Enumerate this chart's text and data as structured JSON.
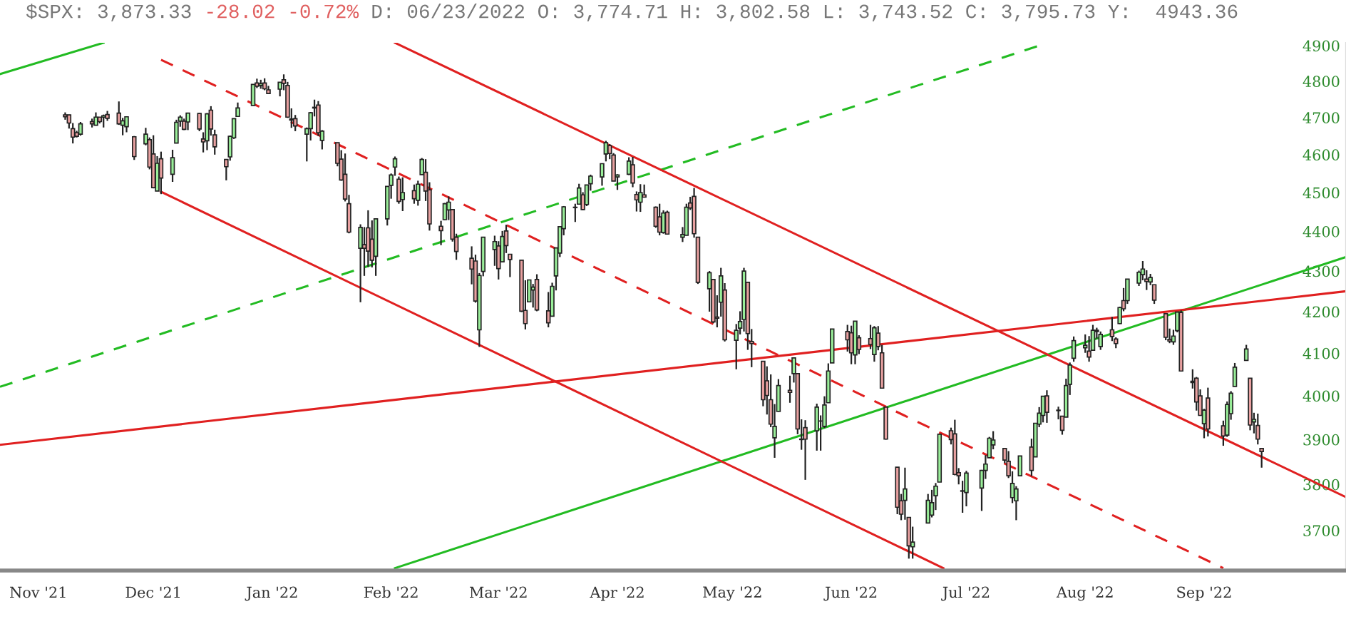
{
  "chart_data": {
    "type": "candlestick",
    "title": "$SPX: 3,873.33",
    "subtitle": "-28.02 -0.72%",
    "annotations": [
      "D: 06/23/2022 O: 3,774.71 H: 3,802.58 L: 3,743.52 C: 3,795.73 Y:  4943.36"
    ],
    "log": true,
    "grid": false,
    "legend": false,
    "xlim": [
      "2021-10-22",
      "2022-10-08"
    ],
    "xticks": [
      {
        "value": "2021-11-01",
        "label": "Nov '21"
      },
      {
        "value": "2021-12-01",
        "label": "Dec '21"
      },
      {
        "value": "2022-01-01",
        "label": "Jan '22"
      },
      {
        "value": "2022-02-01",
        "label": "Feb '22"
      },
      {
        "value": "2022-03-01",
        "label": "Mar '22"
      },
      {
        "value": "2022-04-01",
        "label": "Apr '22"
      },
      {
        "value": "2022-05-01",
        "label": "May '22"
      },
      {
        "value": "2022-06-01",
        "label": "Jun '22"
      },
      {
        "value": "2022-07-01",
        "label": "Jul '22"
      },
      {
        "value": "2022-08-01",
        "label": "Aug '22"
      },
      {
        "value": "2022-09-01",
        "label": "Sep '22"
      }
    ],
    "x": [
      "2021-11-08",
      "2021-11-09",
      "2021-11-10",
      "2021-11-11",
      "2021-11-12",
      "2021-11-15",
      "2021-11-16",
      "2021-11-17",
      "2021-11-18",
      "2021-11-19",
      "2021-11-22",
      "2021-11-23",
      "2021-11-24",
      "2021-11-26",
      "2021-11-29",
      "2021-11-30",
      "2021-12-01",
      "2021-12-02",
      "2021-12-03",
      "2021-12-06",
      "2021-12-07",
      "2021-12-08",
      "2021-12-09",
      "2021-12-10",
      "2021-12-13",
      "2021-12-14",
      "2021-12-15",
      "2021-12-16",
      "2021-12-17",
      "2021-12-20",
      "2021-12-21",
      "2021-12-22",
      "2021-12-23",
      "2021-12-27",
      "2021-12-28",
      "2021-12-29",
      "2021-12-30",
      "2021-12-31",
      "2022-01-03",
      "2022-01-04",
      "2022-01-05",
      "2022-01-06",
      "2022-01-07",
      "2022-01-10",
      "2022-01-11",
      "2022-01-12",
      "2022-01-13",
      "2022-01-14",
      "2022-01-18",
      "2022-01-19",
      "2022-01-20",
      "2022-01-21",
      "2022-01-24",
      "2022-01-25",
      "2022-01-26",
      "2022-01-27",
      "2022-01-28",
      "2022-01-31",
      "2022-02-01",
      "2022-02-02",
      "2022-02-03",
      "2022-02-04",
      "2022-02-07",
      "2022-02-08",
      "2022-02-09",
      "2022-02-10",
      "2022-02-11",
      "2022-02-14",
      "2022-02-15",
      "2022-02-16",
      "2022-02-17",
      "2022-02-18",
      "2022-02-22",
      "2022-02-23",
      "2022-02-24",
      "2022-02-25",
      "2022-02-28",
      "2022-03-01",
      "2022-03-02",
      "2022-03-03",
      "2022-03-04",
      "2022-03-07",
      "2022-03-08",
      "2022-03-09",
      "2022-03-10",
      "2022-03-11",
      "2022-03-14",
      "2022-03-15",
      "2022-03-16",
      "2022-03-17",
      "2022-03-18",
      "2022-03-21",
      "2022-03-22",
      "2022-03-23",
      "2022-03-24",
      "2022-03-25",
      "2022-03-28",
      "2022-03-29",
      "2022-03-30",
      "2022-03-31",
      "2022-04-01",
      "2022-04-04",
      "2022-04-05",
      "2022-04-06",
      "2022-04-07",
      "2022-04-08",
      "2022-04-11",
      "2022-04-12",
      "2022-04-13",
      "2022-04-14",
      "2022-04-18",
      "2022-04-19",
      "2022-04-20",
      "2022-04-21",
      "2022-04-22",
      "2022-04-25",
      "2022-04-26",
      "2022-04-27",
      "2022-04-28",
      "2022-04-29",
      "2022-05-02",
      "2022-05-03",
      "2022-05-04",
      "2022-05-05",
      "2022-05-06",
      "2022-05-09",
      "2022-05-10",
      "2022-05-11",
      "2022-05-12",
      "2022-05-13",
      "2022-05-16",
      "2022-05-17",
      "2022-05-18",
      "2022-05-19",
      "2022-05-20",
      "2022-05-23",
      "2022-05-24",
      "2022-05-25",
      "2022-05-26",
      "2022-05-27",
      "2022-05-31",
      "2022-06-01",
      "2022-06-02",
      "2022-06-03",
      "2022-06-06",
      "2022-06-07",
      "2022-06-08",
      "2022-06-09",
      "2022-06-10",
      "2022-06-13",
      "2022-06-14",
      "2022-06-15",
      "2022-06-16",
      "2022-06-17",
      "2022-06-21",
      "2022-06-22",
      "2022-06-23",
      "2022-06-24",
      "2022-06-27",
      "2022-06-28",
      "2022-06-29",
      "2022-06-30",
      "2022-07-01",
      "2022-07-05",
      "2022-07-06",
      "2022-07-07",
      "2022-07-08",
      "2022-07-11",
      "2022-07-12",
      "2022-07-13",
      "2022-07-14",
      "2022-07-15",
      "2022-07-18",
      "2022-07-19",
      "2022-07-20",
      "2022-07-21",
      "2022-07-22",
      "2022-07-25",
      "2022-07-26",
      "2022-07-27",
      "2022-07-28",
      "2022-07-29",
      "2022-08-01",
      "2022-08-02",
      "2022-08-03",
      "2022-08-04",
      "2022-08-05",
      "2022-08-08",
      "2022-08-09",
      "2022-08-10",
      "2022-08-11",
      "2022-08-12",
      "2022-08-15",
      "2022-08-16",
      "2022-08-17",
      "2022-08-18",
      "2022-08-19",
      "2022-08-22",
      "2022-08-23",
      "2022-08-24",
      "2022-08-25",
      "2022-08-26",
      "2022-08-29",
      "2022-08-30",
      "2022-08-31",
      "2022-09-01",
      "2022-09-02",
      "2022-09-06",
      "2022-09-07",
      "2022-09-08",
      "2022-09-09",
      "2022-09-12",
      "2022-09-13",
      "2022-09-14",
      "2022-09-15",
      "2022-09-16"
    ],
    "ylim": [
      3615,
      4908
    ],
    "yticks": [
      3700,
      3800,
      3900,
      4000,
      4100,
      4200,
      4300,
      4400,
      4500,
      4600,
      4700,
      4800,
      4900
    ],
    "ohlc": [
      [
        4707,
        4714,
        4694,
        4702
      ],
      [
        4707,
        4708,
        4670,
        4685
      ],
      [
        4670,
        4685,
        4630,
        4647
      ],
      [
        4659,
        4664,
        4646,
        4649
      ],
      [
        4655,
        4688,
        4651,
        4683
      ],
      [
        4689,
        4697,
        4673,
        4683
      ],
      [
        4679,
        4714,
        4679,
        4701
      ],
      [
        4701,
        4701,
        4684,
        4689
      ],
      [
        4701,
        4708,
        4673,
        4705
      ],
      [
        4708,
        4718,
        4691,
        4698
      ],
      [
        4712,
        4744,
        4680,
        4683
      ],
      [
        4679,
        4699,
        4652,
        4691
      ],
      [
        4675,
        4702,
        4660,
        4702
      ],
      [
        4648,
        4650,
        4586,
        4595
      ],
      [
        4629,
        4672,
        4625,
        4655
      ],
      [
        4640,
        4646,
        4561,
        4567
      ],
      [
        4602,
        4652,
        4511,
        4513
      ],
      [
        4504,
        4596,
        4504,
        4577
      ],
      [
        4589,
        4608,
        4496,
        4538
      ],
      [
        4548,
        4613,
        4528,
        4592
      ],
      [
        4631,
        4694,
        4631,
        4687
      ],
      [
        4690,
        4706,
        4675,
        4701
      ],
      [
        4690,
        4697,
        4666,
        4668
      ],
      [
        4688,
        4713,
        4666,
        4712
      ],
      [
        4711,
        4712,
        4663,
        4669
      ],
      [
        4642,
        4660,
        4606,
        4634
      ],
      [
        4637,
        4712,
        4612,
        4710
      ],
      [
        4720,
        4731,
        4651,
        4669
      ],
      [
        4653,
        4667,
        4600,
        4621
      ],
      [
        4587,
        4588,
        4532,
        4568
      ],
      [
        4594,
        4651,
        4584,
        4649
      ],
      [
        4645,
        4697,
        4642,
        4697
      ],
      [
        4703,
        4741,
        4703,
        4726
      ],
      [
        4733,
        4791,
        4733,
        4791
      ],
      [
        4795,
        4807,
        4781,
        4786
      ],
      [
        4788,
        4804,
        4779,
        4793
      ],
      [
        4795,
        4808,
        4775,
        4779
      ],
      [
        4776,
        4787,
        4765,
        4766
      ],
      [
        4778,
        4797,
        4758,
        4797
      ],
      [
        4804,
        4819,
        4775,
        4794
      ],
      [
        4788,
        4798,
        4699,
        4701
      ],
      [
        4693,
        4725,
        4672,
        4696
      ],
      [
        4697,
        4707,
        4663,
        4677
      ],
      [
        4655,
        4673,
        4582,
        4670
      ],
      [
        4670,
        4715,
        4638,
        4713
      ],
      [
        4728,
        4749,
        4703,
        4726
      ],
      [
        4734,
        4745,
        4650,
        4659
      ],
      [
        4638,
        4666,
        4614,
        4663
      ],
      [
        4632,
        4632,
        4569,
        4577
      ],
      [
        4588,
        4612,
        4531,
        4533
      ],
      [
        4548,
        4603,
        4477,
        4483
      ],
      [
        4471,
        4494,
        4395,
        4398
      ],
      [
        4357,
        4418,
        4223,
        4410
      ],
      [
        4366,
        4411,
        4288,
        4357
      ],
      [
        4409,
        4454,
        4310,
        4350
      ],
      [
        4380,
        4428,
        4309,
        4327
      ],
      [
        4337,
        4432,
        4288,
        4432
      ],
      [
        4432,
        4516,
        4415,
        4516
      ],
      [
        4519,
        4550,
        4484,
        4546
      ],
      [
        4567,
        4595,
        4544,
        4589
      ],
      [
        4535,
        4542,
        4471,
        4477
      ],
      [
        4482,
        4540,
        4452,
        4500
      ],
      [
        4505,
        4521,
        4471,
        4484
      ],
      [
        4480,
        4531,
        4466,
        4522
      ],
      [
        4547,
        4591,
        4547,
        4587
      ],
      [
        4553,
        4588,
        4478,
        4504
      ],
      [
        4507,
        4527,
        4402,
        4419
      ],
      [
        4413,
        4427,
        4365,
        4402
      ],
      [
        4430,
        4473,
        4429,
        4471
      ],
      [
        4455,
        4490,
        4429,
        4475
      ],
      [
        4456,
        4456,
        4374,
        4380
      ],
      [
        4385,
        4394,
        4328,
        4349
      ],
      [
        4332,
        4362,
        4267,
        4305
      ],
      [
        4325,
        4341,
        4222,
        4226
      ],
      [
        4156,
        4295,
        4115,
        4289
      ],
      [
        4299,
        4385,
        4287,
        4385
      ],
      [
        4354,
        4389,
        4313,
        4374
      ],
      [
        4363,
        4375,
        4279,
        4306
      ],
      [
        4323,
        4401,
        4322,
        4387
      ],
      [
        4401,
        4417,
        4345,
        4364
      ],
      [
        4342,
        4343,
        4285,
        4329
      ],
      [
        4327,
        4327,
        4199,
        4201
      ],
      [
        4203,
        4277,
        4157,
        4171
      ],
      [
        4224,
        4278,
        4224,
        4278
      ],
      [
        4253,
        4268,
        4210,
        4260
      ],
      [
        4279,
        4292,
        4201,
        4204
      ],
      [
        4202,
        4248,
        4162,
        4173
      ],
      [
        4189,
        4271,
        4188,
        4262
      ],
      [
        4288,
        4358,
        4252,
        4358
      ],
      [
        4345,
        4412,
        4335,
        4412
      ],
      [
        4407,
        4465,
        4390,
        4463
      ],
      [
        4462,
        4471,
        4424,
        4461
      ],
      [
        4470,
        4523,
        4469,
        4512
      ],
      [
        4494,
        4501,
        4455,
        4456
      ],
      [
        4469,
        4520,
        4465,
        4520
      ],
      [
        4523,
        4547,
        4505,
        4543
      ],
      [
        4541,
        4577,
        4518,
        4576
      ],
      [
        4602,
        4637,
        4582,
        4632
      ],
      [
        4624,
        4628,
        4588,
        4603
      ],
      [
        4599,
        4604,
        4530,
        4530
      ],
      [
        4541,
        4548,
        4507,
        4546
      ],
      [
        4548,
        4593,
        4546,
        4583
      ],
      [
        4573,
        4594,
        4514,
        4525
      ],
      [
        4495,
        4503,
        4451,
        4481
      ],
      [
        4475,
        4522,
        4450,
        4500
      ],
      [
        4494,
        4521,
        4487,
        4488
      ],
      [
        4462,
        4464,
        4409,
        4413
      ],
      [
        4437,
        4471,
        4390,
        4398
      ],
      [
        4397,
        4454,
        4394,
        4447
      ],
      [
        4449,
        4453,
        4392,
        4393
      ],
      [
        4385,
        4411,
        4373,
        4392
      ],
      [
        4390,
        4471,
        4390,
        4462
      ],
      [
        4473,
        4489,
        4455,
        4460
      ],
      [
        4490,
        4512,
        4384,
        4394
      ],
      [
        4385,
        4386,
        4268,
        4272
      ],
      [
        4256,
        4300,
        4200,
        4296
      ],
      [
        4279,
        4279,
        4172,
        4175
      ],
      [
        4187,
        4240,
        4162,
        4184
      ],
      [
        4223,
        4308,
        4188,
        4288
      ],
      [
        4253,
        4270,
        4128,
        4132
      ],
      [
        4131,
        4170,
        4062,
        4155
      ],
      [
        4160,
        4201,
        4145,
        4176
      ],
      [
        4181,
        4308,
        4152,
        4300
      ],
      [
        4272,
        4272,
        4108,
        4147
      ],
      [
        4128,
        4158,
        4067,
        4123
      ],
      [
        4081,
        4082,
        3976,
        3991
      ],
      [
        4035,
        4069,
        3957,
        4001
      ],
      [
        3991,
        4050,
        3928,
        3935
      ],
      [
        3904,
        3981,
        3859,
        3930
      ],
      [
        3964,
        4039,
        3963,
        4024
      ],
      [
        4013,
        4047,
        3984,
        4008
      ],
      [
        4052,
        4089,
        4031,
        4089
      ],
      [
        4052,
        4052,
        3912,
        3924
      ],
      [
        3900,
        3946,
        3877,
        3901
      ],
      [
        3927,
        3944,
        3810,
        3901
      ],
      [
        3920,
        3982,
        3875,
        3974
      ],
      [
        3942,
        3955,
        3875,
        3942
      ],
      [
        3930,
        3999,
        3926,
        3979
      ],
      [
        3984,
        4076,
        3984,
        4058
      ],
      [
        4077,
        4158,
        4077,
        4158
      ],
      [
        4152,
        4168,
        4104,
        4132
      ],
      [
        4149,
        4166,
        4074,
        4101
      ],
      [
        4096,
        4177,
        4074,
        4177
      ],
      [
        4137,
        4143,
        4098,
        4109
      ],
      [
        4135,
        4168,
        4110,
        4121
      ],
      [
        4097,
        4165,
        4080,
        4161
      ],
      [
        4148,
        4165,
        4107,
        4116
      ],
      [
        4101,
        4120,
        4017,
        4018
      ],
      [
        3974,
        3975,
        3900,
        3901
      ],
      [
        3838,
        3838,
        3735,
        3750
      ],
      [
        3764,
        3779,
        3722,
        3735
      ],
      [
        3765,
        3837,
        3723,
        3790
      ],
      [
        3728,
        3728,
        3640,
        3667
      ],
      [
        3665,
        3708,
        3640,
        3675
      ],
      [
        3716,
        3779,
        3716,
        3765
      ],
      [
        3733,
        3788,
        3728,
        3760
      ],
      [
        3775,
        3803,
        3744,
        3796
      ],
      [
        3805,
        3913,
        3805,
        3912
      ],
      [
        3920,
        3927,
        3889,
        3900
      ],
      [
        3913,
        3945,
        3820,
        3822
      ],
      [
        3826,
        3836,
        3800,
        3819
      ],
      [
        3786,
        3808,
        3738,
        3785
      ],
      [
        3782,
        3830,
        3752,
        3825
      ],
      [
        3792,
        3832,
        3742,
        3831
      ],
      [
        3831,
        3865,
        3812,
        3845
      ],
      [
        3859,
        3906,
        3859,
        3903
      ],
      [
        3888,
        3919,
        3878,
        3899
      ],
      [
        3880,
        3880,
        3847,
        3854
      ],
      [
        3851,
        3874,
        3814,
        3819
      ],
      [
        3771,
        3829,
        3759,
        3802
      ],
      [
        3764,
        3796,
        3722,
        3790
      ],
      [
        3819,
        3863,
        3818,
        3863
      ],
      [
        3883,
        3902,
        3818,
        3831
      ],
      [
        3861,
        3937,
        3861,
        3937
      ],
      [
        3935,
        3974,
        3928,
        3960
      ],
      [
        3955,
        3999,
        3939,
        3999
      ],
      [
        4000,
        4013,
        3938,
        3962
      ],
      [
        3966,
        3975,
        3946,
        3967
      ],
      [
        3953,
        3954,
        3911,
        3921
      ],
      [
        3951,
        4040,
        3951,
        4024
      ],
      [
        4027,
        4078,
        4002,
        4072
      ],
      [
        4088,
        4140,
        4080,
        4130
      ],
      [
        4113,
        4145,
        4101,
        4119
      ],
      [
        4105,
        4141,
        4080,
        4091
      ],
      [
        4107,
        4168,
        4107,
        4155
      ],
      [
        4155,
        4161,
        4135,
        4152
      ],
      [
        4116,
        4152,
        4108,
        4145
      ],
      [
        4156,
        4187,
        4129,
        4140
      ],
      [
        4134,
        4138,
        4112,
        4123
      ],
      [
        4171,
        4212,
        4170,
        4210
      ],
      [
        4227,
        4258,
        4201,
        4207
      ],
      [
        4227,
        4280,
        4219,
        4280
      ],
      [
        4270,
        4301,
        4263,
        4297
      ],
      [
        4291,
        4325,
        4277,
        4305
      ],
      [
        4280,
        4302,
        4253,
        4274
      ],
      [
        4273,
        4293,
        4265,
        4284
      ],
      [
        4266,
        4266,
        4219,
        4228
      ],
      [
        4195,
        4195,
        4131,
        4138
      ],
      [
        4133,
        4159,
        4124,
        4129
      ],
      [
        4127,
        4156,
        4120,
        4141
      ],
      [
        4154,
        4199,
        4150,
        4199
      ],
      [
        4198,
        4203,
        4057,
        4058
      ],
      [
        4034,
        4062,
        4017,
        4031
      ],
      [
        4041,
        4044,
        3966,
        3986
      ],
      [
        4000,
        4015,
        3954,
        3955
      ],
      [
        3936,
        3970,
        3903,
        3967
      ],
      [
        3995,
        4019,
        3907,
        3924
      ],
      [
        3931,
        3943,
        3886,
        3908
      ],
      [
        3910,
        3987,
        3906,
        3980
      ],
      [
        3959,
        4011,
        3945,
        4006
      ],
      [
        4022,
        4077,
        4022,
        4067
      ],
      [
        4083,
        4120,
        4083,
        4110
      ],
      [
        4041,
        4041,
        3921,
        3933
      ],
      [
        3940,
        3961,
        3914,
        3946
      ],
      [
        3932,
        3959,
        3889,
        3901
      ],
      [
        3880,
        3880,
        3837,
        3873
      ]
    ],
    "series": [
      {
        "type": "line",
        "color": "#22bb22",
        "line_style": "solid",
        "x": [
          "2021-10-22",
          "2021-11-18"
        ],
        "values": [
          4820,
          4908
        ]
      },
      {
        "type": "line",
        "color": "#22bb22",
        "line_style": "dashed",
        "x": [
          "2021-10-22",
          "2022-07-20"
        ],
        "values": [
          4021,
          4900
        ]
      },
      {
        "type": "line",
        "color": "#22bb22",
        "line_style": "solid",
        "x": [
          "2022-02-02",
          "2022-10-08"
        ],
        "values": [
          3620,
          4335
        ]
      },
      {
        "type": "line",
        "color": "#e02020",
        "line_style": "solid",
        "x": [
          "2021-10-22",
          "2022-10-08"
        ],
        "values": [
          3888,
          4250
        ]
      },
      {
        "type": "line",
        "color": "#e02020",
        "line_style": "solid",
        "x": [
          "2022-02-02",
          "2022-10-08"
        ],
        "values": [
          4908,
          3772
        ]
      },
      {
        "type": "line",
        "color": "#e02020",
        "line_style": "solid",
        "x": [
          "2021-12-03",
          "2022-06-25"
        ],
        "values": [
          4502,
          3620
        ]
      },
      {
        "type": "line",
        "color": "#e02020",
        "line_style": "dashed",
        "x": [
          "2021-12-03",
          "2022-09-06"
        ],
        "values": [
          4860,
          3620
        ]
      }
    ]
  }
}
